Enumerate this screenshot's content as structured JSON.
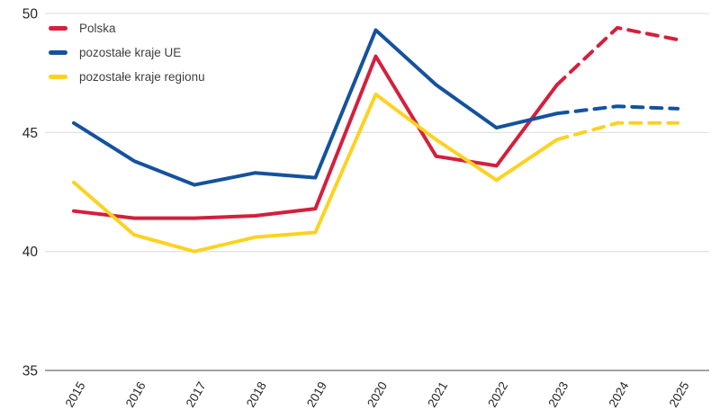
{
  "chart": {
    "background": "#ffffff",
    "grid_color": "#e3e3e3",
    "axis_line_color": "#a3a3a3",
    "tick_label_color": "#262626"
  },
  "legend": {
    "items": [
      {
        "label": "Polska",
        "color": "#d41f3d"
      },
      {
        "label": "pozostałe kraje UE",
        "color": "#14529f"
      },
      {
        "label": "pozostałe kraje regionu",
        "color": "#fdd220"
      }
    ]
  },
  "chart_data": {
    "type": "line",
    "title": "",
    "xlabel": "",
    "ylabel": "",
    "grid": true,
    "legend_position": "top-left",
    "x": [
      2015,
      2016,
      2017,
      2018,
      2019,
      2020,
      2021,
      2022,
      2023,
      2024,
      2025
    ],
    "x_tick_labels": [
      "2015",
      "2016",
      "2017",
      "2018",
      "2019",
      "2020",
      "2021",
      "2022",
      "2023",
      "2024",
      "2025"
    ],
    "y_ticks": [
      50,
      45,
      40,
      35
    ],
    "ylim": [
      35,
      50
    ],
    "forecast_note": "dashed segments from 2023 to 2025 indicate forecast",
    "series": [
      {
        "name": "Polska",
        "color": "#d41f3d",
        "values": [
          41.7,
          41.4,
          41.4,
          41.5,
          41.8,
          48.2,
          44.0,
          43.6,
          47.0,
          49.4,
          48.9
        ],
        "dashed_from_index": 8
      },
      {
        "name": "pozostałe kraje UE",
        "color": "#14529f",
        "values": [
          45.4,
          43.8,
          42.8,
          43.3,
          43.1,
          49.3,
          47.0,
          45.2,
          45.8,
          46.1,
          46.0
        ],
        "dashed_from_index": 8
      },
      {
        "name": "pozostałe kraje regionu",
        "color": "#fdd220",
        "values": [
          42.9,
          40.7,
          40.0,
          40.6,
          40.8,
          46.6,
          44.7,
          43.0,
          44.7,
          45.4,
          45.4
        ],
        "dashed_from_index": 8
      }
    ]
  }
}
